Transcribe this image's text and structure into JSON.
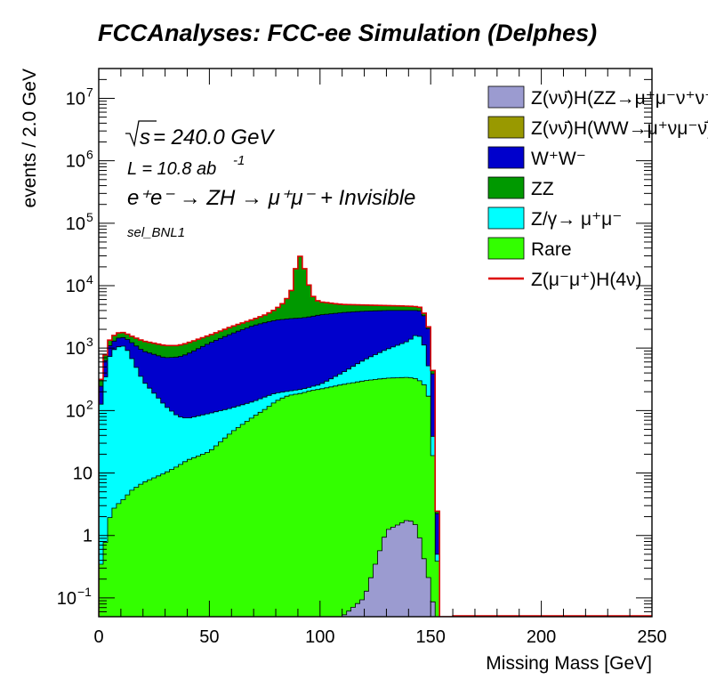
{
  "chart_data": {
    "type": "histogram-stacked",
    "title": "FCCAnalyses: FCC-ee Simulation (Delphes)",
    "xlabel": "Missing Mass [GeV]",
    "ylabel": "events / 2.0 GeV",
    "xlim": [
      0,
      250
    ],
    "ylim": [
      0.05,
      30000000
    ],
    "yscale": "log",
    "bin_width": 2.0,
    "x_ticks": [
      "0",
      "50",
      "100",
      "150",
      "200",
      "250"
    ],
    "y_ticks": [
      {
        "value": 0.1,
        "base": "10",
        "exp": "−1"
      },
      {
        "value": 1,
        "base": "1",
        "exp": ""
      },
      {
        "value": 10,
        "base": "10",
        "exp": ""
      },
      {
        "value": 100,
        "base": "10",
        "exp": "2"
      },
      {
        "value": 1000,
        "base": "10",
        "exp": "3"
      },
      {
        "value": 10000,
        "base": "10",
        "exp": "4"
      },
      {
        "value": 100000,
        "base": "10",
        "exp": "5"
      },
      {
        "value": 1000000,
        "base": "10",
        "exp": "6"
      },
      {
        "value": 10000000,
        "base": "10",
        "exp": "7"
      }
    ],
    "annotations": {
      "sqrt_s": "s",
      "energy": " = 240.0 GeV",
      "lumi_prefix": "L = 10.8 ab",
      "lumi_exp": "-1",
      "process": "e⁺e⁻ → ZH → μ⁺μ⁻ + Invisible",
      "selection": "sel_BNL1"
    },
    "legend": {
      "position": "top-right",
      "entries": [
        {
          "label": "Z(νν̄)H(ZZ→μ⁺μ⁻ν⁺ν⁻)",
          "color": "#9b9bd0",
          "kind": "fill"
        },
        {
          "label": "Z(νν̄)H(WW→μ⁺νμ⁻ν̄)",
          "color": "#999900",
          "kind": "fill"
        },
        {
          "label": "W⁺W⁻",
          "color": "#0000cc",
          "kind": "fill"
        },
        {
          "label": "ZZ",
          "color": "#009900",
          "kind": "fill"
        },
        {
          "label": "Z/γ→ μ⁺μ⁻",
          "color": "#00ffff",
          "kind": "fill"
        },
        {
          "label": "Rare",
          "color": "#33ff00",
          "kind": "fill"
        },
        {
          "label": "Z(μ⁻μ⁺)H(4ν)",
          "color": "#ff0000",
          "kind": "line"
        }
      ]
    },
    "series_order_bottom_to_top": [
      "Z(νν̄)H(ZZ→μ⁺μ⁻ν⁺ν⁻)",
      "Rare",
      "Z/γ→ μ⁺μ⁻",
      "W⁺W⁻",
      "ZZ"
    ],
    "cumulative_curves": {
      "x": [
        0,
        2,
        4,
        6,
        8,
        10,
        12,
        14,
        20,
        30,
        36,
        40,
        50,
        60,
        70,
        76,
        80,
        84,
        86,
        88,
        90,
        92,
        94,
        96,
        98,
        100,
        110,
        120,
        130,
        140,
        144,
        146,
        148,
        150,
        152,
        154,
        156
      ],
      "HZZ": [
        0.05,
        0.05,
        0.05,
        0.05,
        0.05,
        0.05,
        0.05,
        0.05,
        0.05,
        0.05,
        0.05,
        0.05,
        0.05,
        0.05,
        0.05,
        0.05,
        0.05,
        0.05,
        0.05,
        0.05,
        0.05,
        0.05,
        0.05,
        0.05,
        0.05,
        0.05,
        0.05,
        0.1,
        1.2,
        1.8,
        1.4,
        0.6,
        0.3,
        0.15,
        0.05,
        0.05,
        0.05
      ],
      "Rare": [
        0.3,
        0.4,
        1.5,
        2.5,
        3,
        3.5,
        4,
        5,
        7,
        10,
        13,
        16,
        22,
        45,
        80,
        110,
        140,
        165,
        175,
        180,
        185,
        190,
        200,
        210,
        215,
        220,
        260,
        300,
        330,
        340,
        320,
        280,
        240,
        120,
        3,
        0.05,
        0.05
      ],
      "Zmumu": [
        80,
        200,
        600,
        900,
        1000,
        1100,
        1050,
        800,
        300,
        120,
        80,
        75,
        90,
        110,
        140,
        170,
        190,
        200,
        205,
        210,
        215,
        220,
        230,
        240,
        250,
        260,
        400,
        650,
        950,
        1300,
        1700,
        1400,
        900,
        300,
        5,
        0.05,
        0.05
      ],
      "WW": [
        150,
        400,
        1000,
        1200,
        1400,
        1500,
        1450,
        1300,
        900,
        700,
        720,
        800,
        1200,
        1700,
        2300,
        2600,
        2800,
        2900,
        2950,
        3000,
        3000,
        3050,
        3100,
        3200,
        3300,
        3400,
        3700,
        3900,
        4000,
        4000,
        4000,
        3900,
        2800,
        1500,
        100,
        0.05,
        0.05
      ],
      "ZZ": [
        200,
        500,
        1200,
        1500,
        1700,
        1800,
        1750,
        1600,
        1300,
        1100,
        1100,
        1200,
        1600,
        2200,
        2900,
        3500,
        4200,
        5500,
        7000,
        10000,
        35000,
        25000,
        14000,
        7500,
        6000,
        5500,
        5000,
        4900,
        4800,
        4700,
        4600,
        4400,
        3000,
        1600,
        120,
        0.05,
        0.05
      ]
    }
  }
}
